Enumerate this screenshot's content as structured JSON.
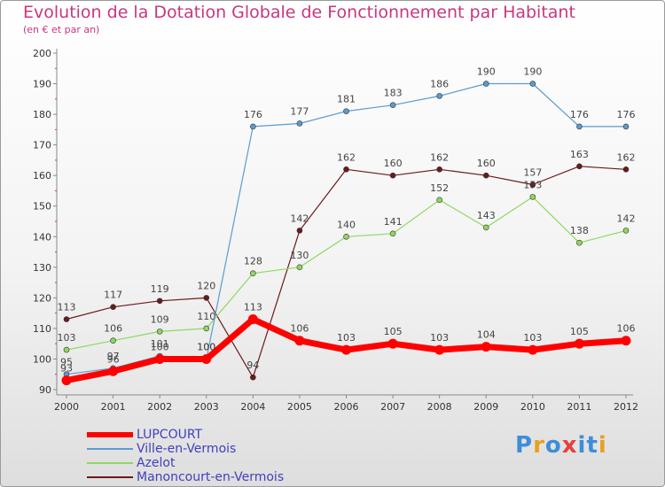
{
  "title": "Evolution de la Dotation Globale de Fonctionnement par Habitant",
  "subtitle": "(en € et par an)",
  "brand": {
    "letters": [
      "P",
      "r",
      "o",
      "x",
      "i",
      "t",
      "i"
    ],
    "colors": [
      "#3d8ed8",
      "#e8a020",
      "#3d8ed8",
      "#e84040",
      "#3d8ed8",
      "#3d8ed8",
      "#e8a020"
    ]
  },
  "chart_data": {
    "type": "line",
    "title": "Evolution de la Dotation Globale de Fonctionnement par Habitant",
    "subtitle": "(en € et par an)",
    "xlabel": "",
    "ylabel": "",
    "categories": [
      "2000",
      "2001",
      "2002",
      "2003",
      "2004",
      "2005",
      "2006",
      "2007",
      "2008",
      "2009",
      "2010",
      "2011",
      "2012"
    ],
    "ylim": [
      90,
      200
    ],
    "yticks": [
      90,
      100,
      110,
      120,
      130,
      140,
      150,
      160,
      170,
      180,
      190,
      200
    ],
    "grid": false,
    "legend_position": "bottom-left",
    "series": [
      {
        "name": "Manoncourt-en-Vermois",
        "color": "#6b1a1a",
        "width": 1.2,
        "values": [
          113,
          117,
          119,
          120,
          94,
          142,
          162,
          160,
          162,
          160,
          157,
          163,
          162
        ]
      },
      {
        "name": "Azelot",
        "color": "#8fd860",
        "width": 1.2,
        "values": [
          103,
          106,
          109,
          110,
          128,
          130,
          140,
          141,
          152,
          143,
          153,
          138,
          142
        ]
      },
      {
        "name": "Ville-en-Vermois",
        "color": "#5b9bd0",
        "width": 1.2,
        "values": [
          95,
          97,
          101,
          100,
          176,
          177,
          181,
          183,
          186,
          190,
          190,
          176,
          176
        ]
      },
      {
        "name": "LUPCOURT",
        "color": "#ff0000",
        "width": 7,
        "values": [
          93,
          96,
          100,
          100,
          113,
          106,
          103,
          105,
          103,
          104,
          103,
          105,
          106
        ]
      }
    ]
  },
  "legend": [
    {
      "name": "LUPCOURT",
      "color": "#ff0000",
      "thick": true
    },
    {
      "name": "Ville-en-Vermois",
      "color": "#5b9bd0",
      "thick": false
    },
    {
      "name": "Azelot",
      "color": "#8fd860",
      "thick": false
    },
    {
      "name": "Manoncourt-en-Vermois",
      "color": "#6b1a1a",
      "thick": false
    }
  ]
}
